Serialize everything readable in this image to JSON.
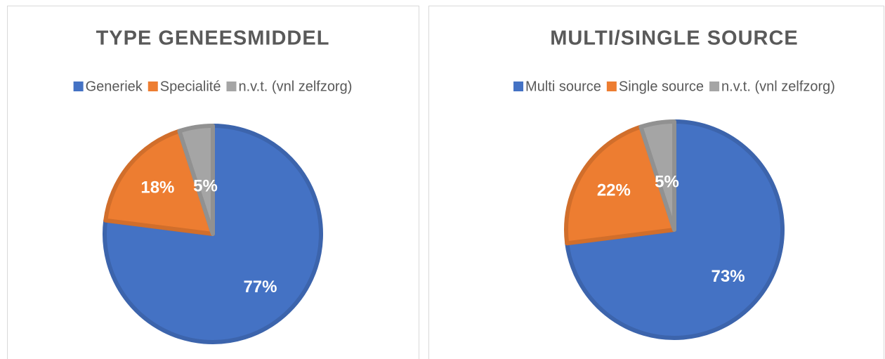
{
  "chart_data": [
    {
      "type": "pie",
      "title": "TYPE GENEESMIDDEL",
      "categories": [
        "Generiek",
        "Specialité",
        "n.v.t. (vnl zelfzorg)"
      ],
      "values": [
        77,
        18,
        5
      ],
      "value_labels": [
        "77%",
        "18%",
        "5%"
      ],
      "colors": [
        "#4472c4",
        "#ed7d31",
        "#a5a5a5"
      ],
      "legend": "top"
    },
    {
      "type": "pie",
      "title": "MULTI/SINGLE SOURCE",
      "categories": [
        "Multi source",
        "Single source",
        "n.v.t. (vnl zelfzorg)"
      ],
      "values": [
        73,
        22,
        5
      ],
      "value_labels": [
        "73%",
        "22%",
        "5%"
      ],
      "colors": [
        "#4472c4",
        "#ed7d31",
        "#a5a5a5"
      ],
      "legend": "top"
    }
  ]
}
